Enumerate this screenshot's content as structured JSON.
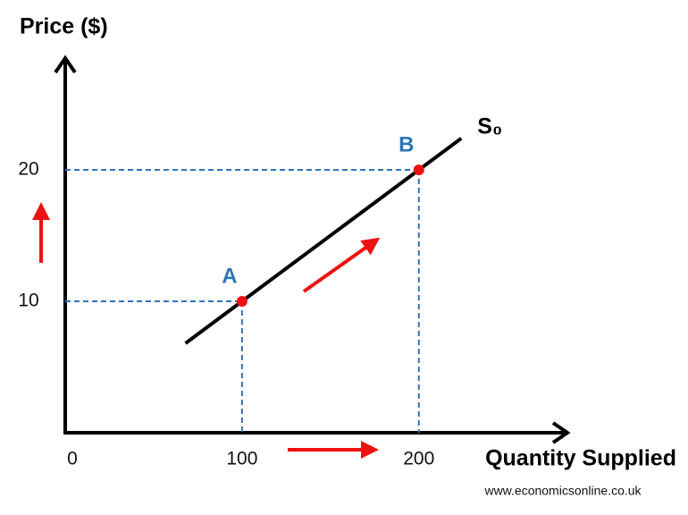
{
  "chart_data": {
    "type": "line",
    "y_label": "Price ($)",
    "x_label": "Quantity Supplied",
    "source": "www.economicsonline.co.uk",
    "xlim": [
      0,
      284
    ],
    "ylim": [
      0,
      28.5
    ],
    "xticks": [
      0,
      100,
      200
    ],
    "yticks": [
      10,
      20
    ],
    "series": [
      {
        "name": "S₀",
        "color": "#000000",
        "x": [
          68,
          224
        ],
        "values": [
          6.8,
          22.4
        ]
      }
    ],
    "points": [
      {
        "label": "A",
        "x": 100,
        "y": 10
      },
      {
        "label": "B",
        "x": 200,
        "y": 20
      }
    ],
    "point_color": "#ee1111",
    "label_color": "#2e75b6",
    "guide_color": "#2e75b6"
  }
}
